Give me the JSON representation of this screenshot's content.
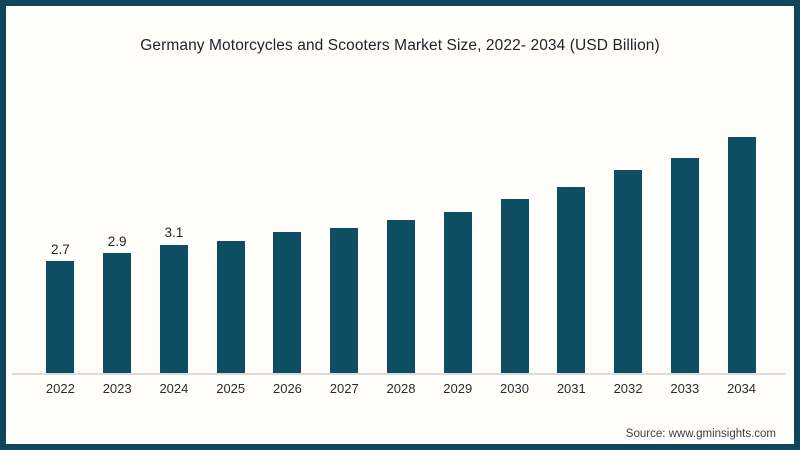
{
  "frame": {
    "border_color": "#11455c",
    "background_color": "#fffefb"
  },
  "chart_data": {
    "type": "bar",
    "title": "Germany Motorcycles and Scooters Market Size, 2022- 2034 (USD Billion)",
    "xlabel": "",
    "ylabel": "",
    "categories": [
      "2022",
      "2023",
      "2024",
      "2025",
      "2026",
      "2027",
      "2028",
      "2029",
      "2030",
      "2031",
      "2032",
      "2033",
      "2034"
    ],
    "values": [
      2.7,
      2.9,
      3.1,
      3.2,
      3.4,
      3.5,
      3.7,
      3.9,
      4.2,
      4.5,
      4.9,
      5.2,
      5.7
    ],
    "data_labels": [
      "2.7",
      "2.9",
      "3.1",
      "",
      "",
      "",
      "",
      "",
      "",
      "",
      "",
      "",
      ""
    ],
    "ylim": [
      0,
      6.6
    ],
    "grid": false,
    "legend": false,
    "bar_color": "#0d4e63",
    "axis_line_color": "#dcdcdc"
  },
  "source": {
    "label": "Source: www.gminsights.com"
  }
}
